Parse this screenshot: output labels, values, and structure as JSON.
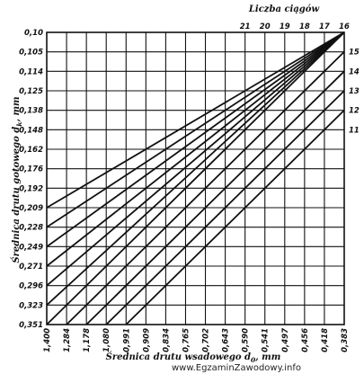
{
  "chart_data": {
    "type": "line",
    "title": "",
    "xlabel": "Średnica drutu wsadowego d",
    "xlabel_subscript": "0",
    "xlabel_unit": ", mm",
    "ylabel": "Średnica drutu gotowego d",
    "ylabel_subscript": "k",
    "ylabel_unit": ", mm",
    "top_label": "Liczba ciągów",
    "x_ticks": [
      "1,400",
      "1,284",
      "1,178",
      "1,080",
      "0,991",
      "0,909",
      "0,834",
      "0,765",
      "0,702",
      "0,643",
      "0,590",
      "0,541",
      "0,497",
      "0,456",
      "0,418",
      "0,383"
    ],
    "y_ticks": [
      "0,10",
      "0,105",
      "0,114",
      "0,125",
      "0,138",
      "0,148",
      "0,162",
      "0,176",
      "0,192",
      "0,209",
      "0,228",
      "0,249",
      "0,271",
      "0,296",
      "0,323",
      "0,351"
    ],
    "top_ticks": [
      "21",
      "20",
      "19",
      "18",
      "17",
      "16"
    ],
    "right_ticks": [
      "15",
      "14",
      "13",
      "12",
      "11"
    ],
    "grid": true
  },
  "watermark": "www.EgzaminZawodowy.info"
}
